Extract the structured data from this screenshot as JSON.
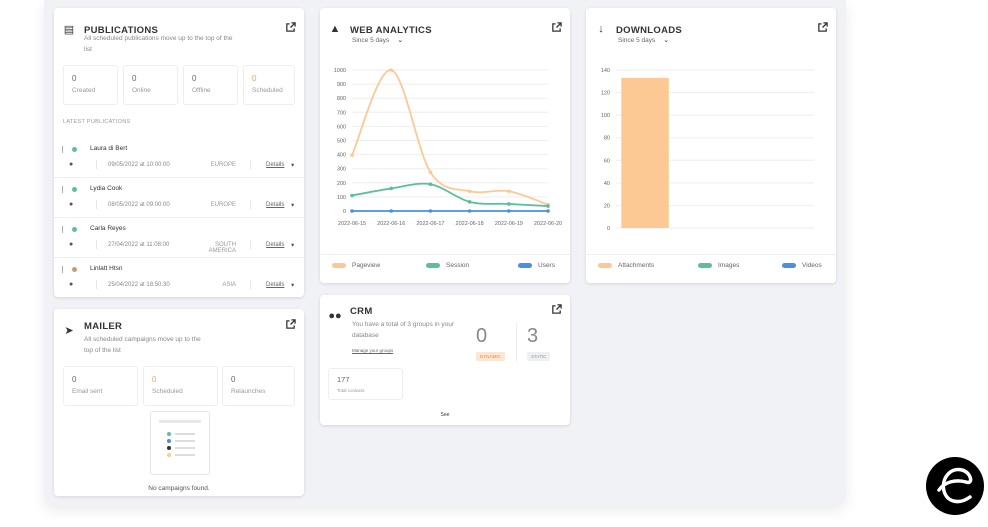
{
  "publications": {
    "title": "PUBLICATIONS",
    "subtitle_line1": "All scheduled publications move up to the top of the",
    "subtitle_line2": "list",
    "stats": [
      {
        "value": "0",
        "label": "Created"
      },
      {
        "value": "0",
        "label": "Online"
      },
      {
        "value": "0",
        "label": "Offline"
      },
      {
        "value": "0",
        "label": "Scheduled"
      }
    ],
    "latest_label": "LATEST PUBLICATIONS",
    "details_label": "Details",
    "rows": [
      {
        "name": "Laura di Bert",
        "date": "09/05/2022 at 10:00:00",
        "region": "EUROPE",
        "dot_color": "#5bbf9d"
      },
      {
        "name": "Lydia Cook",
        "date": "08/05/2022 at 09:00:00",
        "region": "EUROPE",
        "dot_color": "#5bbf9d"
      },
      {
        "name": "Carla Reyes",
        "date": "27/04/2022 at 11:08:00",
        "region": "SOUTH AMERICA",
        "dot_color": "#5bbf9d"
      },
      {
        "name": "Linlatt Htsn",
        "date": "25/04/2022 at 18:50:30",
        "region": "ASIA",
        "dot_color": "#c99a7a"
      }
    ]
  },
  "mailer": {
    "title": "MAILER",
    "subtitle_line1": "All scheduled campaigns move up to the",
    "subtitle_line2": "top of the list",
    "stats": [
      {
        "value": "0",
        "label": "Email sent"
      },
      {
        "value": "0",
        "label": "Scheduled"
      },
      {
        "value": "0",
        "label": "Relaunches"
      }
    ],
    "empty_text": "No campaigns found."
  },
  "web_analytics": {
    "title": "WEB ANALYTICS",
    "period": "Since 5 days",
    "legend": [
      "Pageview",
      "Session",
      "Users"
    ]
  },
  "downloads": {
    "title": "DOWNLOADS",
    "period": "Since 5 days",
    "legend": [
      "Attachments",
      "Images",
      "Videos"
    ]
  },
  "crm": {
    "title": "CRM",
    "subtitle_line1": "You have a total of 3 groups in your",
    "subtitle_line2": "database",
    "manage_link": "Manage your groups",
    "dynamic_value": "0",
    "dynamic_label": "DYNAMIC",
    "static_value": "3",
    "static_label": "STATIC",
    "contacts_value": "177",
    "contacts_label": "Total contacts",
    "footer_link": "See"
  },
  "colors": {
    "pageview": "#fcc995",
    "session": "#5bbf9d",
    "users": "#4a8fe0",
    "scheduled_accent": "#f5a05a"
  },
  "chart_data": [
    {
      "type": "line",
      "x": [
        "2022-06-15",
        "2022-06-16",
        "2022-06-17",
        "2022-06-18",
        "2022-06-19",
        "2022-06-20"
      ],
      "ylim": [
        0,
        1000
      ],
      "yticks": [
        0,
        100,
        200,
        300,
        400,
        500,
        600,
        700,
        800,
        900,
        1000
      ],
      "series": [
        {
          "name": "Pageview",
          "color": "#fcc995",
          "values": [
            395,
            1000,
            275,
            140,
            140,
            45
          ]
        },
        {
          "name": "Session",
          "color": "#5bbf9d",
          "values": [
            110,
            160,
            190,
            65,
            50,
            35
          ]
        },
        {
          "name": "Users",
          "color": "#4a8fe0",
          "values": [
            0,
            0,
            0,
            0,
            0,
            0
          ]
        }
      ],
      "grid": true
    },
    {
      "type": "bar",
      "categories": [
        "Attachments"
      ],
      "ylim": [
        0,
        140
      ],
      "yticks": [
        0,
        20,
        40,
        60,
        80,
        100,
        120,
        140
      ],
      "series": [
        {
          "name": "Attachments",
          "color": "#fcc995",
          "values": [
            133
          ]
        },
        {
          "name": "Images",
          "color": "#5bbf9d",
          "values": [
            0
          ]
        },
        {
          "name": "Videos",
          "color": "#4a8fe0",
          "values": [
            0
          ]
        }
      ],
      "grid": true
    }
  ]
}
